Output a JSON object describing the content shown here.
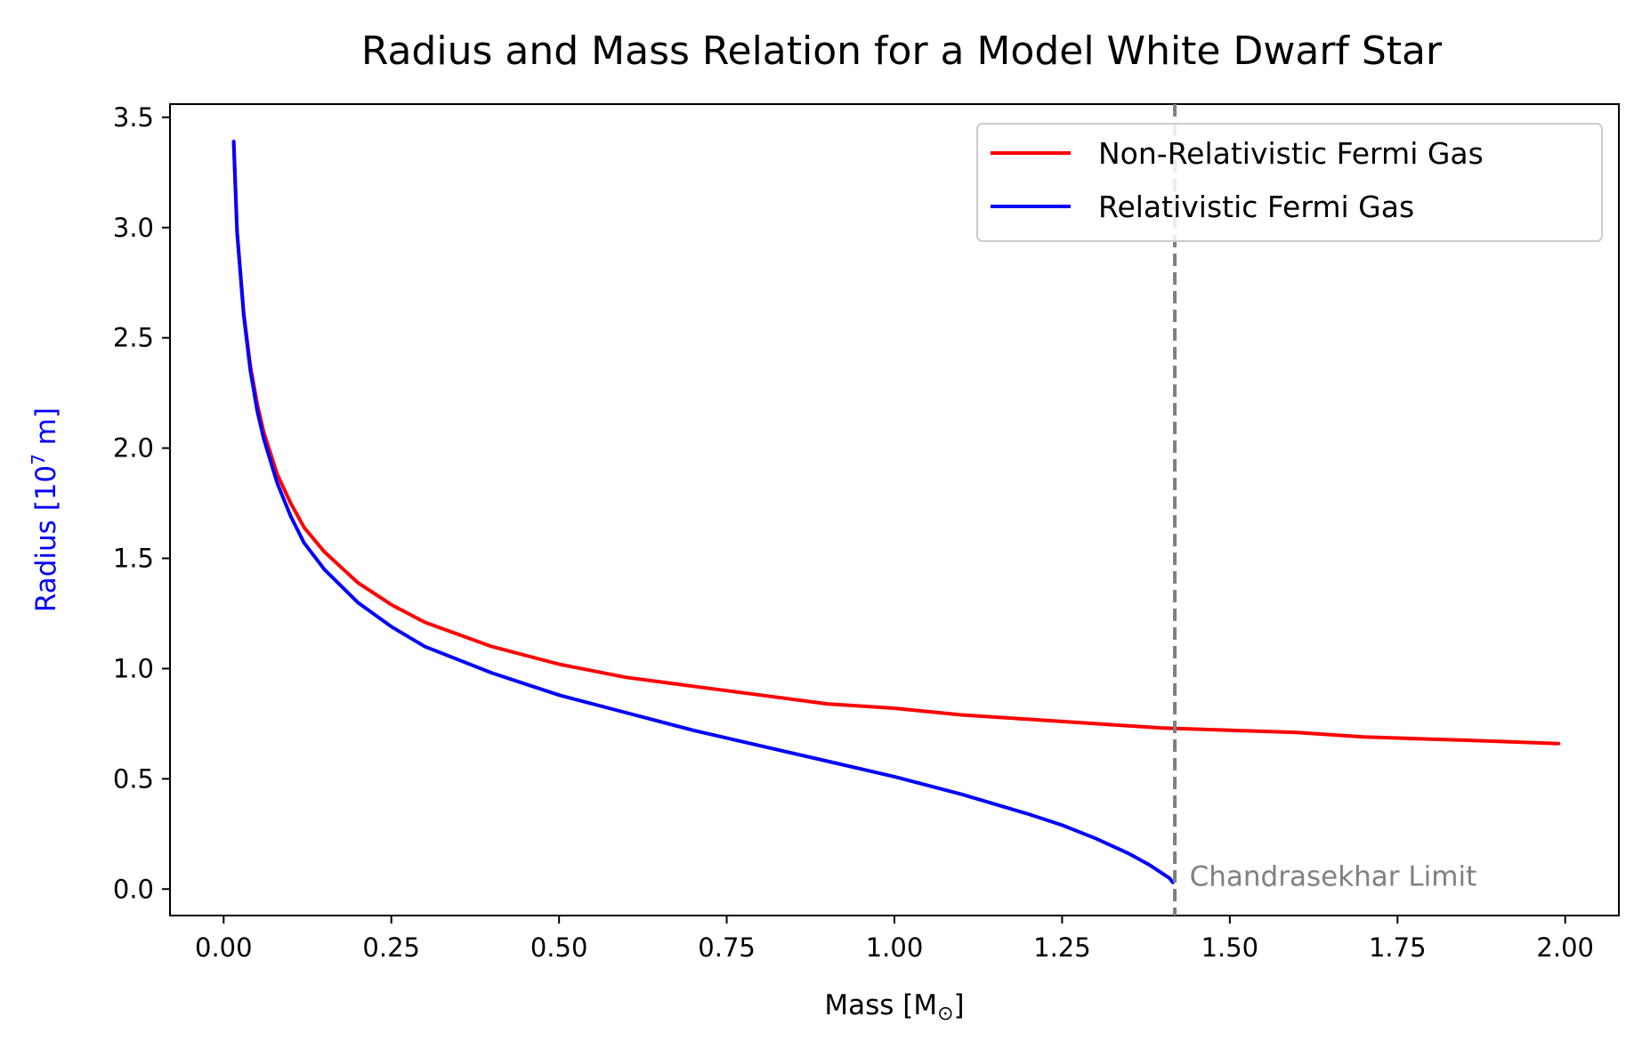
{
  "chart_data": {
    "type": "line",
    "title": "Radius and Mass Relation for a Model White Dwarf Star",
    "xlabel": "Mass [M",
    "xlabel_subscript": "⊙",
    "xlabel_close": "]",
    "ylabel": "Radius  [10",
    "ylabel_superscript": "7",
    "ylabel_unit": " m]",
    "ylabel_color": "#0000ff",
    "xlim": [
      -0.08,
      2.08
    ],
    "ylim": [
      -0.12,
      3.56
    ],
    "xticks": [
      0.0,
      0.25,
      0.5,
      0.75,
      1.0,
      1.25,
      1.5,
      1.75,
      2.0
    ],
    "xtick_labels": [
      "0.00",
      "0.25",
      "0.50",
      "0.75",
      "1.00",
      "1.25",
      "1.50",
      "1.75",
      "2.00"
    ],
    "yticks": [
      0.0,
      0.5,
      1.0,
      1.5,
      2.0,
      2.5,
      3.0,
      3.5
    ],
    "ytick_labels": [
      "0.0",
      "0.5",
      "1.0",
      "1.5",
      "2.0",
      "2.5",
      "3.0",
      "3.5"
    ],
    "grid": false,
    "legend_position": "top-right",
    "series": [
      {
        "name": "Non-Relativistic Fermi Gas",
        "color": "#ff0000",
        "x": [
          0.015,
          0.02,
          0.03,
          0.04,
          0.05,
          0.06,
          0.08,
          0.1,
          0.12,
          0.15,
          0.2,
          0.25,
          0.3,
          0.4,
          0.5,
          0.6,
          0.7,
          0.8,
          0.9,
          1.0,
          1.1,
          1.2,
          1.3,
          1.4,
          1.5,
          1.6,
          1.7,
          1.8,
          1.9,
          1.99
        ],
        "y": [
          3.39,
          2.98,
          2.61,
          2.37,
          2.2,
          2.07,
          1.88,
          1.75,
          1.64,
          1.53,
          1.39,
          1.29,
          1.21,
          1.1,
          1.02,
          0.96,
          0.92,
          0.88,
          0.84,
          0.82,
          0.79,
          0.77,
          0.75,
          0.73,
          0.72,
          0.71,
          0.69,
          0.68,
          0.67,
          0.66
        ]
      },
      {
        "name": "Relativistic Fermi Gas",
        "color": "#0000ff",
        "x": [
          0.015,
          0.02,
          0.03,
          0.04,
          0.05,
          0.06,
          0.08,
          0.1,
          0.12,
          0.15,
          0.2,
          0.25,
          0.3,
          0.4,
          0.5,
          0.6,
          0.7,
          0.8,
          0.9,
          1.0,
          1.1,
          1.2,
          1.25,
          1.3,
          1.35,
          1.38,
          1.4,
          1.41,
          1.415
        ],
        "y": [
          3.39,
          2.98,
          2.6,
          2.35,
          2.17,
          2.04,
          1.84,
          1.69,
          1.57,
          1.45,
          1.3,
          1.19,
          1.1,
          0.98,
          0.88,
          0.8,
          0.72,
          0.65,
          0.58,
          0.51,
          0.43,
          0.34,
          0.29,
          0.23,
          0.16,
          0.11,
          0.07,
          0.05,
          0.03
        ]
      }
    ],
    "reference_line": {
      "x": 1.418,
      "color": "#808080",
      "style": "dashed",
      "annotation": "Chandrasekhar Limit",
      "annotation_x": 1.44,
      "annotation_y": 0.05
    }
  }
}
